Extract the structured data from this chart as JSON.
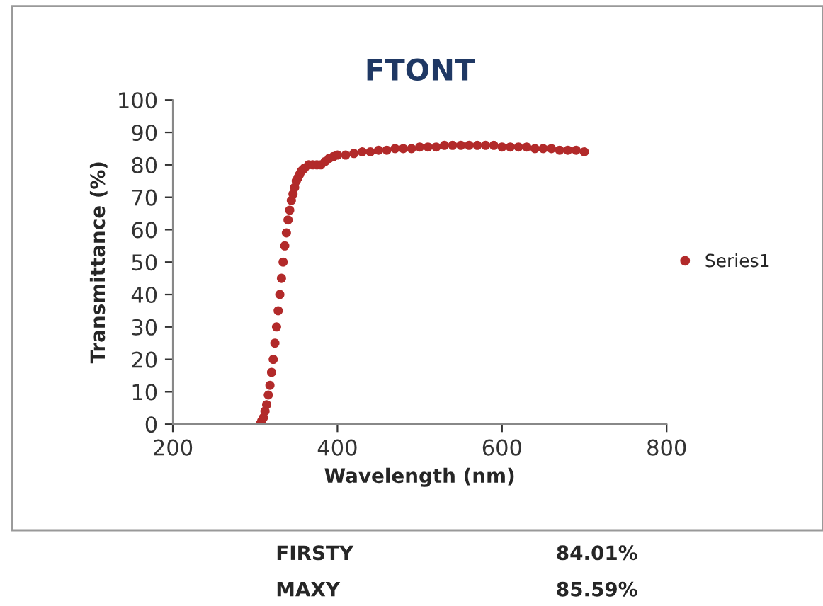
{
  "chart_data": {
    "type": "scatter",
    "title": "FTONT",
    "xlabel": "Wavelength (nm)",
    "ylabel": "Transmittance (%)",
    "x": [
      306,
      308,
      310,
      312,
      314,
      316,
      318,
      320,
      322,
      324,
      326,
      328,
      330,
      332,
      334,
      336,
      338,
      340,
      342,
      344,
      346,
      348,
      350,
      352,
      354,
      356,
      358,
      360,
      365,
      370,
      375,
      380,
      385,
      390,
      395,
      400,
      410,
      420,
      430,
      440,
      450,
      460,
      470,
      480,
      490,
      500,
      510,
      520,
      530,
      540,
      550,
      560,
      570,
      580,
      590,
      600,
      610,
      620,
      630,
      640,
      650,
      660,
      670,
      680,
      690,
      700
    ],
    "series": [
      {
        "name": "Series1",
        "color": "#b22a2a",
        "values": [
          0,
          1,
          2,
          4,
          6,
          9,
          12,
          16,
          20,
          25,
          30,
          35,
          40,
          45,
          50,
          55,
          59,
          63,
          66,
          69,
          71,
          73,
          75,
          76,
          77,
          78,
          78.5,
          79,
          80,
          80,
          80,
          80,
          81,
          82,
          82.5,
          83,
          83,
          83.5,
          84,
          84,
          84.5,
          84.5,
          85,
          85,
          85,
          85.5,
          85.5,
          85.5,
          86,
          86,
          86,
          86,
          86,
          86,
          86,
          85.5,
          85.5,
          85.5,
          85.5,
          85,
          85,
          85,
          84.5,
          84.5,
          84.5,
          84
        ]
      }
    ],
    "xlim": [
      200,
      800
    ],
    "xticks": [
      200,
      400,
      600,
      800
    ],
    "ylim": [
      0,
      100
    ],
    "yticks": [
      0,
      10,
      20,
      30,
      40,
      50,
      60,
      70,
      80,
      90,
      100
    ],
    "grid": false,
    "legend": "right",
    "marker": "circle",
    "annotations": [
      "FIRSTY",
      "84.01%",
      "MAXY",
      "85.59%"
    ]
  }
}
